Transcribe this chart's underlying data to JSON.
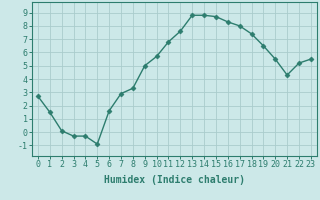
{
  "x": [
    0,
    1,
    2,
    3,
    4,
    5,
    6,
    7,
    8,
    9,
    10,
    11,
    12,
    13,
    14,
    15,
    16,
    17,
    18,
    19,
    20,
    21,
    22,
    23
  ],
  "y": [
    2.7,
    1.5,
    0.1,
    -0.3,
    -0.3,
    -0.9,
    1.6,
    2.9,
    3.3,
    5.0,
    5.7,
    6.8,
    7.6,
    8.8,
    8.8,
    8.7,
    8.3,
    8.0,
    7.4,
    6.5,
    5.5,
    4.3,
    5.2,
    5.5
  ],
  "line_color": "#2d7d6e",
  "marker": "D",
  "marker_size": 2.5,
  "line_width": 1.0,
  "bg_color": "#cce8e8",
  "grid_color": "#aacccc",
  "xlabel": "Humidex (Indice chaleur)",
  "xlim": [
    -0.5,
    23.5
  ],
  "ylim": [
    -1.8,
    9.8
  ],
  "yticks": [
    -1,
    0,
    1,
    2,
    3,
    4,
    5,
    6,
    7,
    8,
    9
  ],
  "xticks": [
    0,
    1,
    2,
    3,
    4,
    5,
    6,
    7,
    8,
    9,
    10,
    11,
    12,
    13,
    14,
    15,
    16,
    17,
    18,
    19,
    20,
    21,
    22,
    23
  ],
  "xlabel_fontsize": 7,
  "tick_fontsize": 6,
  "tick_color": "#2d7d6e",
  "axis_color": "#2d7d6e",
  "spine_color": "#2d7d6e"
}
